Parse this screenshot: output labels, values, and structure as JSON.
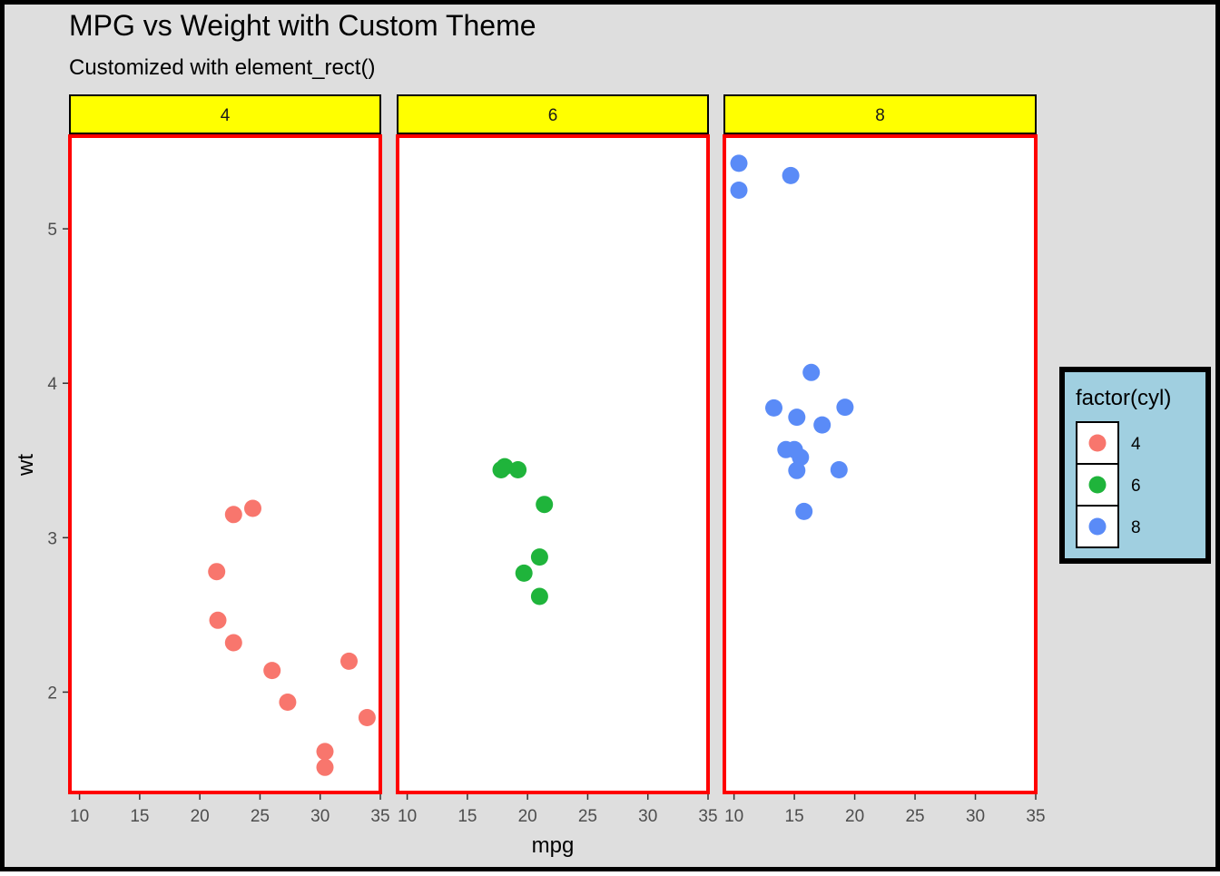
{
  "chart_data": {
    "type": "scatter",
    "title": "MPG vs Weight with Custom Theme",
    "subtitle": "Customized with element_rect()",
    "xlabel": "mpg",
    "ylabel": "wt",
    "xlim": [
      9.2,
      35.0
    ],
    "ylim": [
      1.35,
      5.6
    ],
    "xticks": [
      10,
      15,
      20,
      25,
      30,
      35
    ],
    "yticks": [
      2,
      3,
      4,
      5
    ],
    "facets": [
      "4",
      "6",
      "8"
    ],
    "grid": false,
    "legend": {
      "title": "factor(cyl)",
      "position": "right",
      "entries": [
        "4",
        "6",
        "8"
      ]
    },
    "colors": {
      "plot_background": "#dedede",
      "plot_border": "#000000",
      "panel_background": "#ffffff",
      "panel_border": "#ff0000",
      "strip_background": "#ffff00",
      "legend_background": "#a0cfe0",
      "4": "#f8766d",
      "6": "#1fb43b",
      "8": "#5a8bf7"
    },
    "series": [
      {
        "name": "4",
        "points": [
          [
            22.8,
            2.32
          ],
          [
            24.4,
            3.19
          ],
          [
            22.8,
            3.15
          ],
          [
            32.4,
            2.2
          ],
          [
            30.4,
            1.615
          ],
          [
            33.9,
            1.835
          ],
          [
            21.5,
            2.465
          ],
          [
            27.3,
            1.935
          ],
          [
            26.0,
            2.14
          ],
          [
            30.4,
            1.513
          ],
          [
            21.4,
            2.78
          ]
        ]
      },
      {
        "name": "6",
        "points": [
          [
            21.0,
            2.62
          ],
          [
            21.0,
            2.875
          ],
          [
            21.4,
            3.215
          ],
          [
            18.1,
            3.46
          ],
          [
            19.2,
            3.44
          ],
          [
            17.8,
            3.44
          ],
          [
            19.7,
            2.77
          ]
        ]
      },
      {
        "name": "8",
        "points": [
          [
            18.7,
            3.44
          ],
          [
            14.3,
            3.57
          ],
          [
            16.4,
            4.07
          ],
          [
            17.3,
            3.73
          ],
          [
            15.2,
            3.78
          ],
          [
            10.4,
            5.25
          ],
          [
            10.4,
            5.424
          ],
          [
            14.7,
            5.345
          ],
          [
            15.5,
            3.52
          ],
          [
            15.2,
            3.435
          ],
          [
            13.3,
            3.84
          ],
          [
            19.2,
            3.845
          ],
          [
            15.8,
            3.17
          ],
          [
            15.0,
            3.57
          ]
        ]
      }
    ]
  }
}
